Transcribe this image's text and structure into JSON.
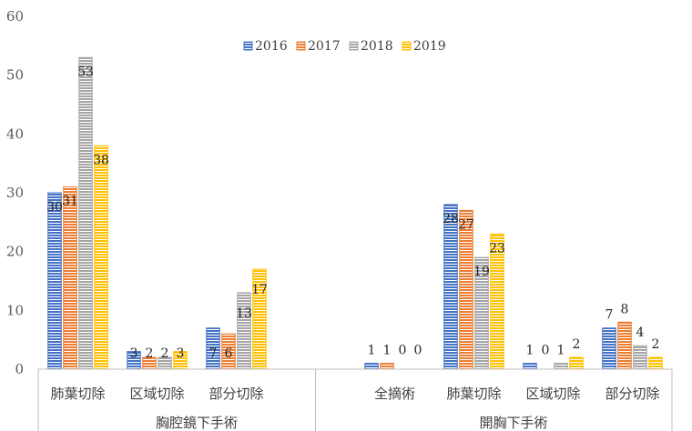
{
  "chart_data": {
    "type": "bar",
    "title": "",
    "xlabel": "",
    "ylabel": "",
    "ylim": [
      0,
      60
    ],
    "yticks": [
      0,
      10,
      20,
      30,
      40,
      50,
      60
    ],
    "grid": false,
    "legend_position": "top-center",
    "groups": [
      {
        "name": "胸腔鏡下手術",
        "categories": [
          "肺葉切除",
          "区域切除",
          "部分切除"
        ]
      },
      {
        "name": "開胸下手術",
        "categories": [
          "全摘術",
          "肺葉切除",
          "区域切除",
          "部分切除"
        ]
      }
    ],
    "categories": [
      "肺葉切除",
      "区域切除",
      "部分切除",
      "全摘術",
      "肺葉切除",
      "区域切除",
      "部分切除"
    ],
    "series": [
      {
        "name": "2016",
        "color": "#4472C4",
        "values": [
          30,
          3,
          7,
          1,
          28,
          1,
          7
        ]
      },
      {
        "name": "2017",
        "color": "#ED7D31",
        "values": [
          31,
          2,
          6,
          1,
          27,
          0,
          8
        ]
      },
      {
        "name": "2018",
        "color": "#A5A5A5",
        "values": [
          53,
          2,
          13,
          0,
          19,
          1,
          4
        ]
      },
      {
        "name": "2019",
        "color": "#FFC000",
        "values": [
          38,
          3,
          17,
          0,
          23,
          2,
          2
        ]
      }
    ]
  }
}
